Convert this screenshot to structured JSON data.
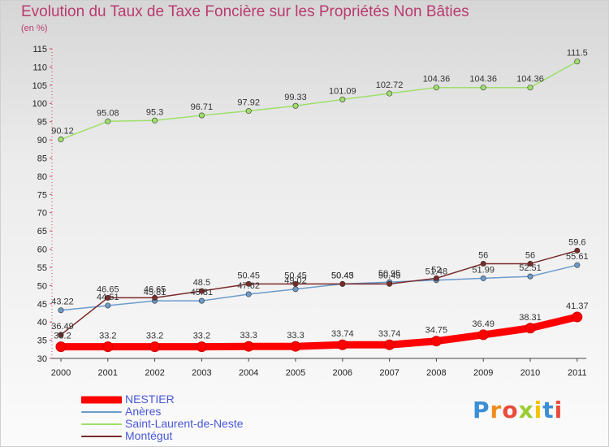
{
  "title": "Evolution du Taux de Taxe Foncière sur les Propriétés Non Bâties",
  "unit_label": "(en %)",
  "logo": {
    "text": "Proxiti",
    "colors": [
      "#3a8fd6",
      "#f08c1e",
      "#e94b3c",
      "#9acd32",
      "#f2c500",
      "#3a8fd6",
      "#e94b3c"
    ]
  },
  "chart_data": {
    "type": "line",
    "title": "Evolution du Taux de Taxe Foncière sur les Propriétés Non Bâties",
    "ylabel": "(en %)",
    "xlabel": "",
    "ylim": [
      30,
      115
    ],
    "yticks": [
      30,
      35,
      40,
      45,
      50,
      55,
      60,
      65,
      70,
      75,
      80,
      85,
      90,
      95,
      100,
      105,
      110,
      115
    ],
    "x": [
      "2000",
      "2001",
      "2002",
      "2003",
      "2004",
      "2005",
      "2006",
      "2007",
      "2008",
      "2009",
      "2010",
      "2011"
    ],
    "grid": false,
    "legend": "bottom-left",
    "series": [
      {
        "name": "NESTIER",
        "color": "#ff0000",
        "width": 9,
        "values": [
          33.2,
          33.2,
          33.2,
          33.2,
          33.3,
          33.3,
          33.74,
          33.74,
          34.75,
          36.49,
          38.31,
          41.37
        ],
        "labels": [
          "33.2",
          "33.2",
          "33.2",
          "33.2",
          "33.3",
          "33.3",
          "33.74",
          "33.74",
          "34.75",
          "36.49",
          "38.31",
          "41.37"
        ]
      },
      {
        "name": "Anères",
        "color": "#6b9bcc",
        "width": 1.5,
        "values": [
          43.22,
          44.51,
          45.81,
          45.81,
          47.62,
          49.02,
          50.43,
          50.95,
          51.48,
          51.99,
          52.51,
          55.61
        ],
        "labels": [
          "43.22",
          "44.51",
          "45.81",
          "45.81",
          "47.62",
          "49.02",
          "50.43",
          "50.95",
          "51.48",
          "51.99",
          "52.51",
          "55.61"
        ]
      },
      {
        "name": "Saint-Laurent-de-Neste",
        "color": "#9ee06a",
        "width": 1.5,
        "values": [
          90.12,
          95.08,
          95.3,
          96.71,
          97.92,
          99.33,
          101.09,
          102.72,
          104.36,
          104.36,
          104.36,
          111.5
        ],
        "labels": [
          "90.12",
          "95.08",
          "95.3",
          "96.71",
          "97.92",
          "99.33",
          "101.09",
          "102.72",
          "104.36",
          "104.36",
          "104.36",
          "111.5"
        ]
      },
      {
        "name": "Montégut",
        "color": "#7a2a2a",
        "width": 1.5,
        "values": [
          36.49,
          46.65,
          46.65,
          48.5,
          50.45,
          50.45,
          50.45,
          50.45,
          52,
          56,
          56,
          59.6
        ],
        "labels": [
          "36.49",
          "46.65",
          "46.65",
          "48.5",
          "50.45",
          "50.45",
          "50.45",
          "50.45",
          "52",
          "56",
          "56",
          "59.6"
        ]
      }
    ]
  }
}
